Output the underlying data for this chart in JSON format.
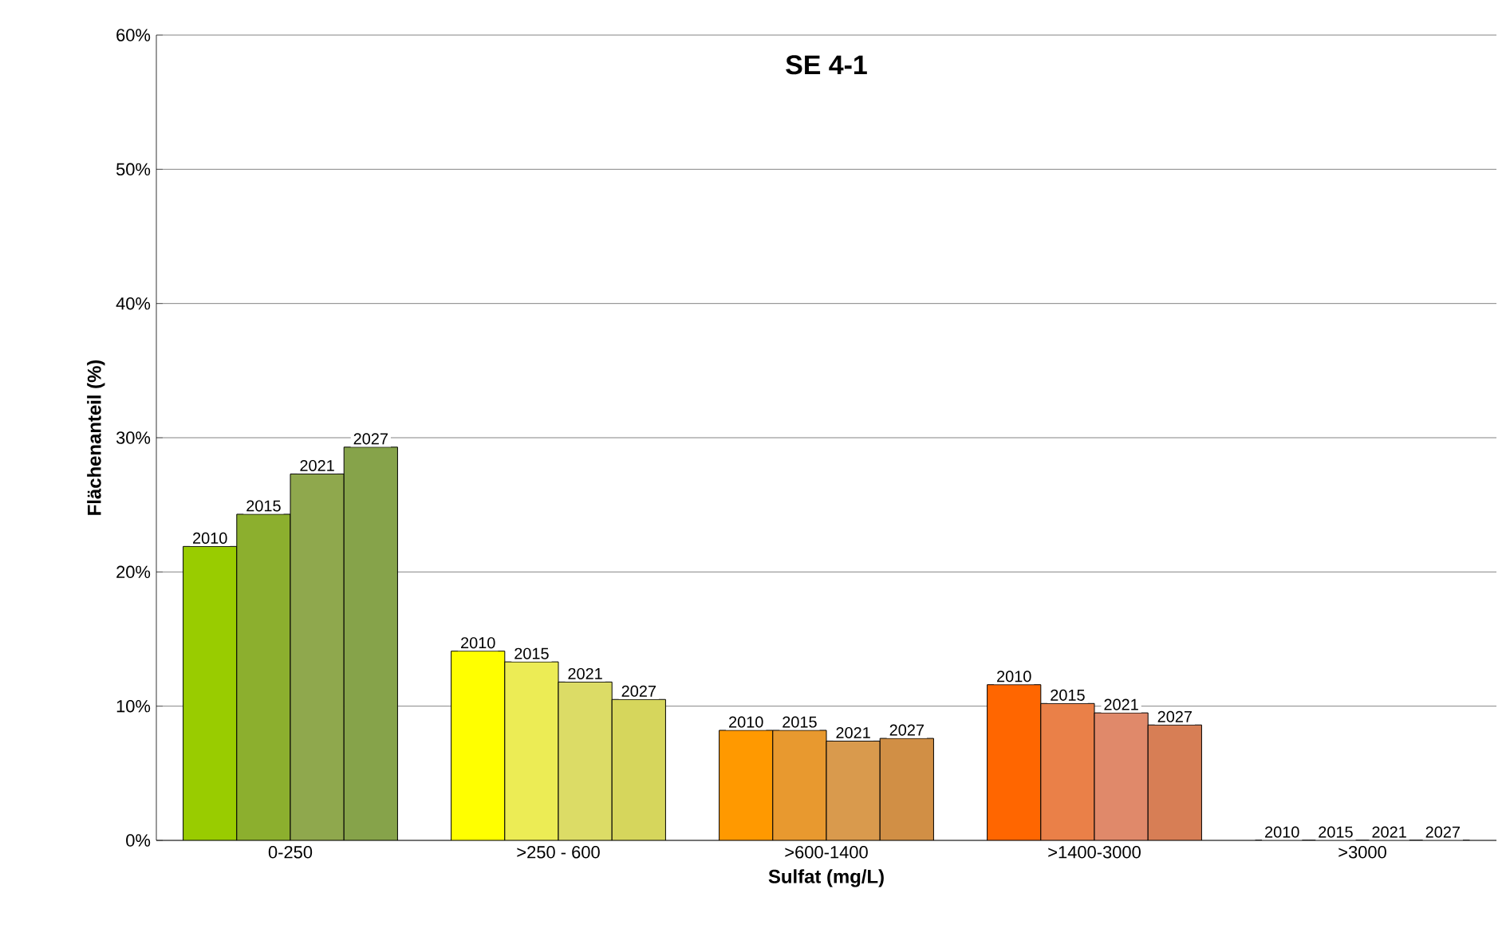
{
  "chart_data": {
    "type": "bar",
    "title": "SE 4-1",
    "xlabel": "Sulfat (mg/L)",
    "ylabel": "Flächenanteil (%)",
    "categories": [
      "0-250",
      ">250 - 600",
      ">600-1400",
      ">1400-3000",
      ">3000"
    ],
    "series": [
      {
        "name": "2010",
        "colors": [
          "#99cc00",
          "#ffff00",
          "#ff9900",
          "#ff6600",
          "#ff6600"
        ],
        "values": [
          21.9,
          14.1,
          8.2,
          11.6,
          0
        ]
      },
      {
        "name": "2015",
        "colors": [
          "#8caf2e",
          "#ecec55",
          "#e8992f",
          "#ea8048",
          "#ea8048"
        ],
        "values": [
          24.3,
          13.3,
          8.2,
          10.2,
          0
        ]
      },
      {
        "name": "2021",
        "colors": [
          "#8fa84d",
          "#dcdc66",
          "#d99a4d",
          "#e0896a",
          "#e0896a"
        ],
        "values": [
          27.3,
          11.8,
          7.4,
          9.5,
          0
        ]
      },
      {
        "name": "2027",
        "colors": [
          "#86a34a",
          "#d6d65c",
          "#d18f45",
          "#d77e55",
          "#d77e55"
        ],
        "values": [
          29.3,
          10.5,
          7.6,
          8.6,
          0
        ]
      }
    ],
    "ylim": [
      0,
      60
    ],
    "yticks": [
      {
        "value": 0,
        "label": "0%"
      },
      {
        "value": 10,
        "label": "10%"
      },
      {
        "value": 20,
        "label": "20%"
      },
      {
        "value": 30,
        "label": "30%"
      },
      {
        "value": 40,
        "label": "40%"
      },
      {
        "value": 50,
        "label": "50%"
      },
      {
        "value": 60,
        "label": "60%"
      }
    ],
    "grid": "y"
  }
}
